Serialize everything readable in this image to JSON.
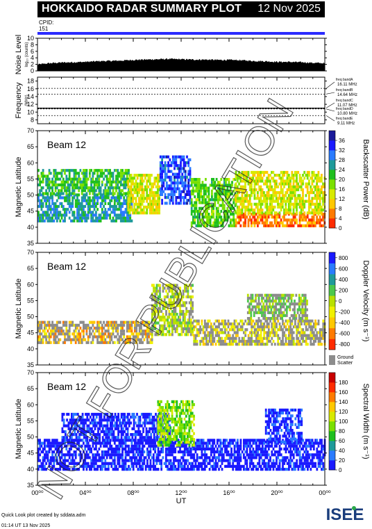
{
  "header": {
    "title": "HOKKAIDO RADAR SUMMARY PLOT",
    "date": "12 Nov 2025",
    "cpid_label": "CPID:",
    "cpid_value": "151"
  },
  "footer": {
    "line1": "Quick Look plot created by sddata.adm",
    "line2": "01:14 UT 13 Nov 2025"
  },
  "logo_text": "ISEE",
  "watermark": "NOT FOR PUBLICATION",
  "colors": {
    "cpid_bar": "#2b2bff",
    "ground_scatter": "#8c8c8c"
  },
  "chart_data": [
    {
      "type": "area",
      "id": "noise",
      "ylabel": "Noise Level",
      "ylabel_sub": "log₁₀ (counts)",
      "ylim": [
        0,
        10
      ],
      "yticks": [
        "0",
        "2",
        "4",
        "6",
        "8",
        "10"
      ],
      "x": [
        0,
        1,
        2,
        3,
        4,
        5,
        6,
        7,
        8,
        9,
        10,
        11,
        12,
        13,
        14,
        15,
        16,
        17,
        18,
        19,
        20,
        21,
        22,
        23,
        24
      ],
      "values": [
        1.9,
        2.3,
        2.5,
        2.6,
        2.7,
        2.9,
        3.0,
        3.1,
        3.3,
        3.4,
        3.5,
        3.6,
        3.5,
        3.4,
        3.4,
        3.3,
        3.3,
        3.2,
        3.0,
        2.9,
        2.7,
        2.7,
        2.6,
        2.4,
        2.3
      ]
    },
    {
      "type": "line",
      "id": "frequency",
      "ylabel": "Frequency",
      "ylabel_sub": "(MHz)",
      "ylim": [
        7,
        19
      ],
      "yticks": [
        "8",
        "10",
        "12",
        "14",
        "16",
        "18"
      ],
      "freq_band_lines": [
        16.11,
        14.64,
        11.07,
        10.8,
        9.11
      ],
      "operating_frequency": 11.0,
      "bands": [
        {
          "label": "freq bandA",
          "value": "16.11 MHz"
        },
        {
          "label": "freq bandB",
          "value": "14.64 MHz"
        },
        {
          "label": "freq bandC",
          "value": "11.07 MHz"
        },
        {
          "label": "freq bandD",
          "value": "10.80 MHz"
        },
        {
          "label": "freq bandE",
          "value": "9.11 MHz"
        }
      ]
    },
    {
      "type": "heatmap",
      "id": "power",
      "beam_label": "Beam 12",
      "ylabel": "Magnetic Latitude",
      "ylim": [
        35,
        70
      ],
      "yticks": [
        "35",
        "40",
        "45",
        "50",
        "55",
        "60",
        "65",
        "70"
      ],
      "colorbar_label": "Backscatter Power (dB)",
      "colorbar_ticks": [
        "0",
        "4",
        "8",
        "12",
        "16",
        "20",
        "24",
        "28",
        "32",
        "36"
      ],
      "colorbar_range": [
        0,
        40
      ],
      "colormap": [
        "#ff2b00",
        "#ff7a00",
        "#ffc800",
        "#d8ea00",
        "#7be000",
        "#1fbf1f",
        "#1f9a9a",
        "#2a7bff",
        "#1a1aff",
        "#1a1a9a"
      ],
      "scatter_bands": [
        {
          "t0": 0,
          "t1": 7.8,
          "lat0": 41.5,
          "lat1": 50,
          "level": 26
        },
        {
          "t0": 0,
          "t1": 7.6,
          "lat0": 50,
          "lat1": 58,
          "level": 22
        },
        {
          "t0": 7.5,
          "t1": 10.2,
          "lat0": 44,
          "lat1": 56,
          "level": 14
        },
        {
          "t0": 10.2,
          "t1": 12.8,
          "lat0": 47,
          "lat1": 62,
          "level": 32
        },
        {
          "t0": 12.8,
          "t1": 16.5,
          "lat0": 40,
          "lat1": 55,
          "level": 20
        },
        {
          "t0": 16.5,
          "t1": 24,
          "lat0": 40,
          "lat1": 44,
          "level": 6
        },
        {
          "t0": 16.5,
          "t1": 24,
          "lat0": 44,
          "lat1": 57,
          "level": 14
        }
      ]
    },
    {
      "type": "heatmap",
      "id": "velocity",
      "beam_label": "Beam 12",
      "ylabel": "Magnetic Latitude",
      "ylim": [
        35,
        70
      ],
      "yticks": [
        "35",
        "40",
        "45",
        "50",
        "55",
        "60",
        "65",
        "70"
      ],
      "colorbar_label": "Doppler Velocity (m s⁻¹)",
      "colorbar_ticks": [
        "-800",
        "-600",
        "-400",
        "-200",
        "0",
        "200",
        "400",
        "600",
        "800"
      ],
      "colorbar_range": [
        -900,
        900
      ],
      "colormap": [
        "#ff2b00",
        "#ff7a00",
        "#ffc800",
        "#f0f000",
        "#b8e000",
        "#4cc84c",
        "#1f9a9a",
        "#2a7bff",
        "#1a1aff"
      ],
      "ground_scatter_label": "Ground Scatter",
      "scatter_bands": [
        {
          "t0": 0,
          "t1": 9.5,
          "lat0": 41.5,
          "lat1": 48.5,
          "level": -400,
          "ground": 0.55
        },
        {
          "t0": 9.5,
          "t1": 13,
          "lat0": 44,
          "lat1": 60,
          "level": 0,
          "ground": 0.3
        },
        {
          "t0": 13,
          "t1": 24,
          "lat0": 41,
          "lat1": 49,
          "level": -200,
          "ground": 0.6
        },
        {
          "t0": 17.5,
          "t1": 22.5,
          "lat0": 49,
          "lat1": 57,
          "level": 100,
          "ground": 0.45
        }
      ]
    },
    {
      "type": "heatmap",
      "id": "width",
      "beam_label": "Beam 12",
      "ylabel": "Magnetic Latitude",
      "ylim": [
        35,
        70
      ],
      "yticks": [
        "35",
        "40",
        "45",
        "50",
        "55",
        "60",
        "65",
        "70"
      ],
      "colorbar_label": "Spectral Width (m s⁻¹)",
      "colorbar_ticks": [
        "0",
        "20",
        "40",
        "60",
        "80",
        "100",
        "120",
        "140",
        "160",
        "180"
      ],
      "colorbar_range": [
        0,
        200
      ],
      "colormap": [
        "#1a1aff",
        "#2a7bff",
        "#1f9a9a",
        "#1fbf1f",
        "#7be000",
        "#d8ea00",
        "#ffc800",
        "#ff7a00",
        "#ff2b00",
        "#c80000"
      ],
      "scatter_bands": [
        {
          "t0": 0,
          "t1": 24,
          "lat0": 39.5,
          "lat1": 48.5,
          "level": 5
        },
        {
          "t0": 2,
          "t1": 11,
          "lat0": 48.5,
          "lat1": 57,
          "level": 10
        },
        {
          "t0": 10,
          "t1": 13,
          "lat0": 47,
          "lat1": 61,
          "level": 90
        },
        {
          "t0": 19,
          "t1": 22,
          "lat0": 48,
          "lat1": 58,
          "level": 12
        }
      ],
      "xlabel": "UT",
      "xticks": [
        "00⁰⁰",
        "04⁰⁰",
        "08⁰⁰",
        "12⁰⁰",
        "16⁰⁰",
        "20⁰⁰",
        "00⁰⁰"
      ]
    }
  ]
}
